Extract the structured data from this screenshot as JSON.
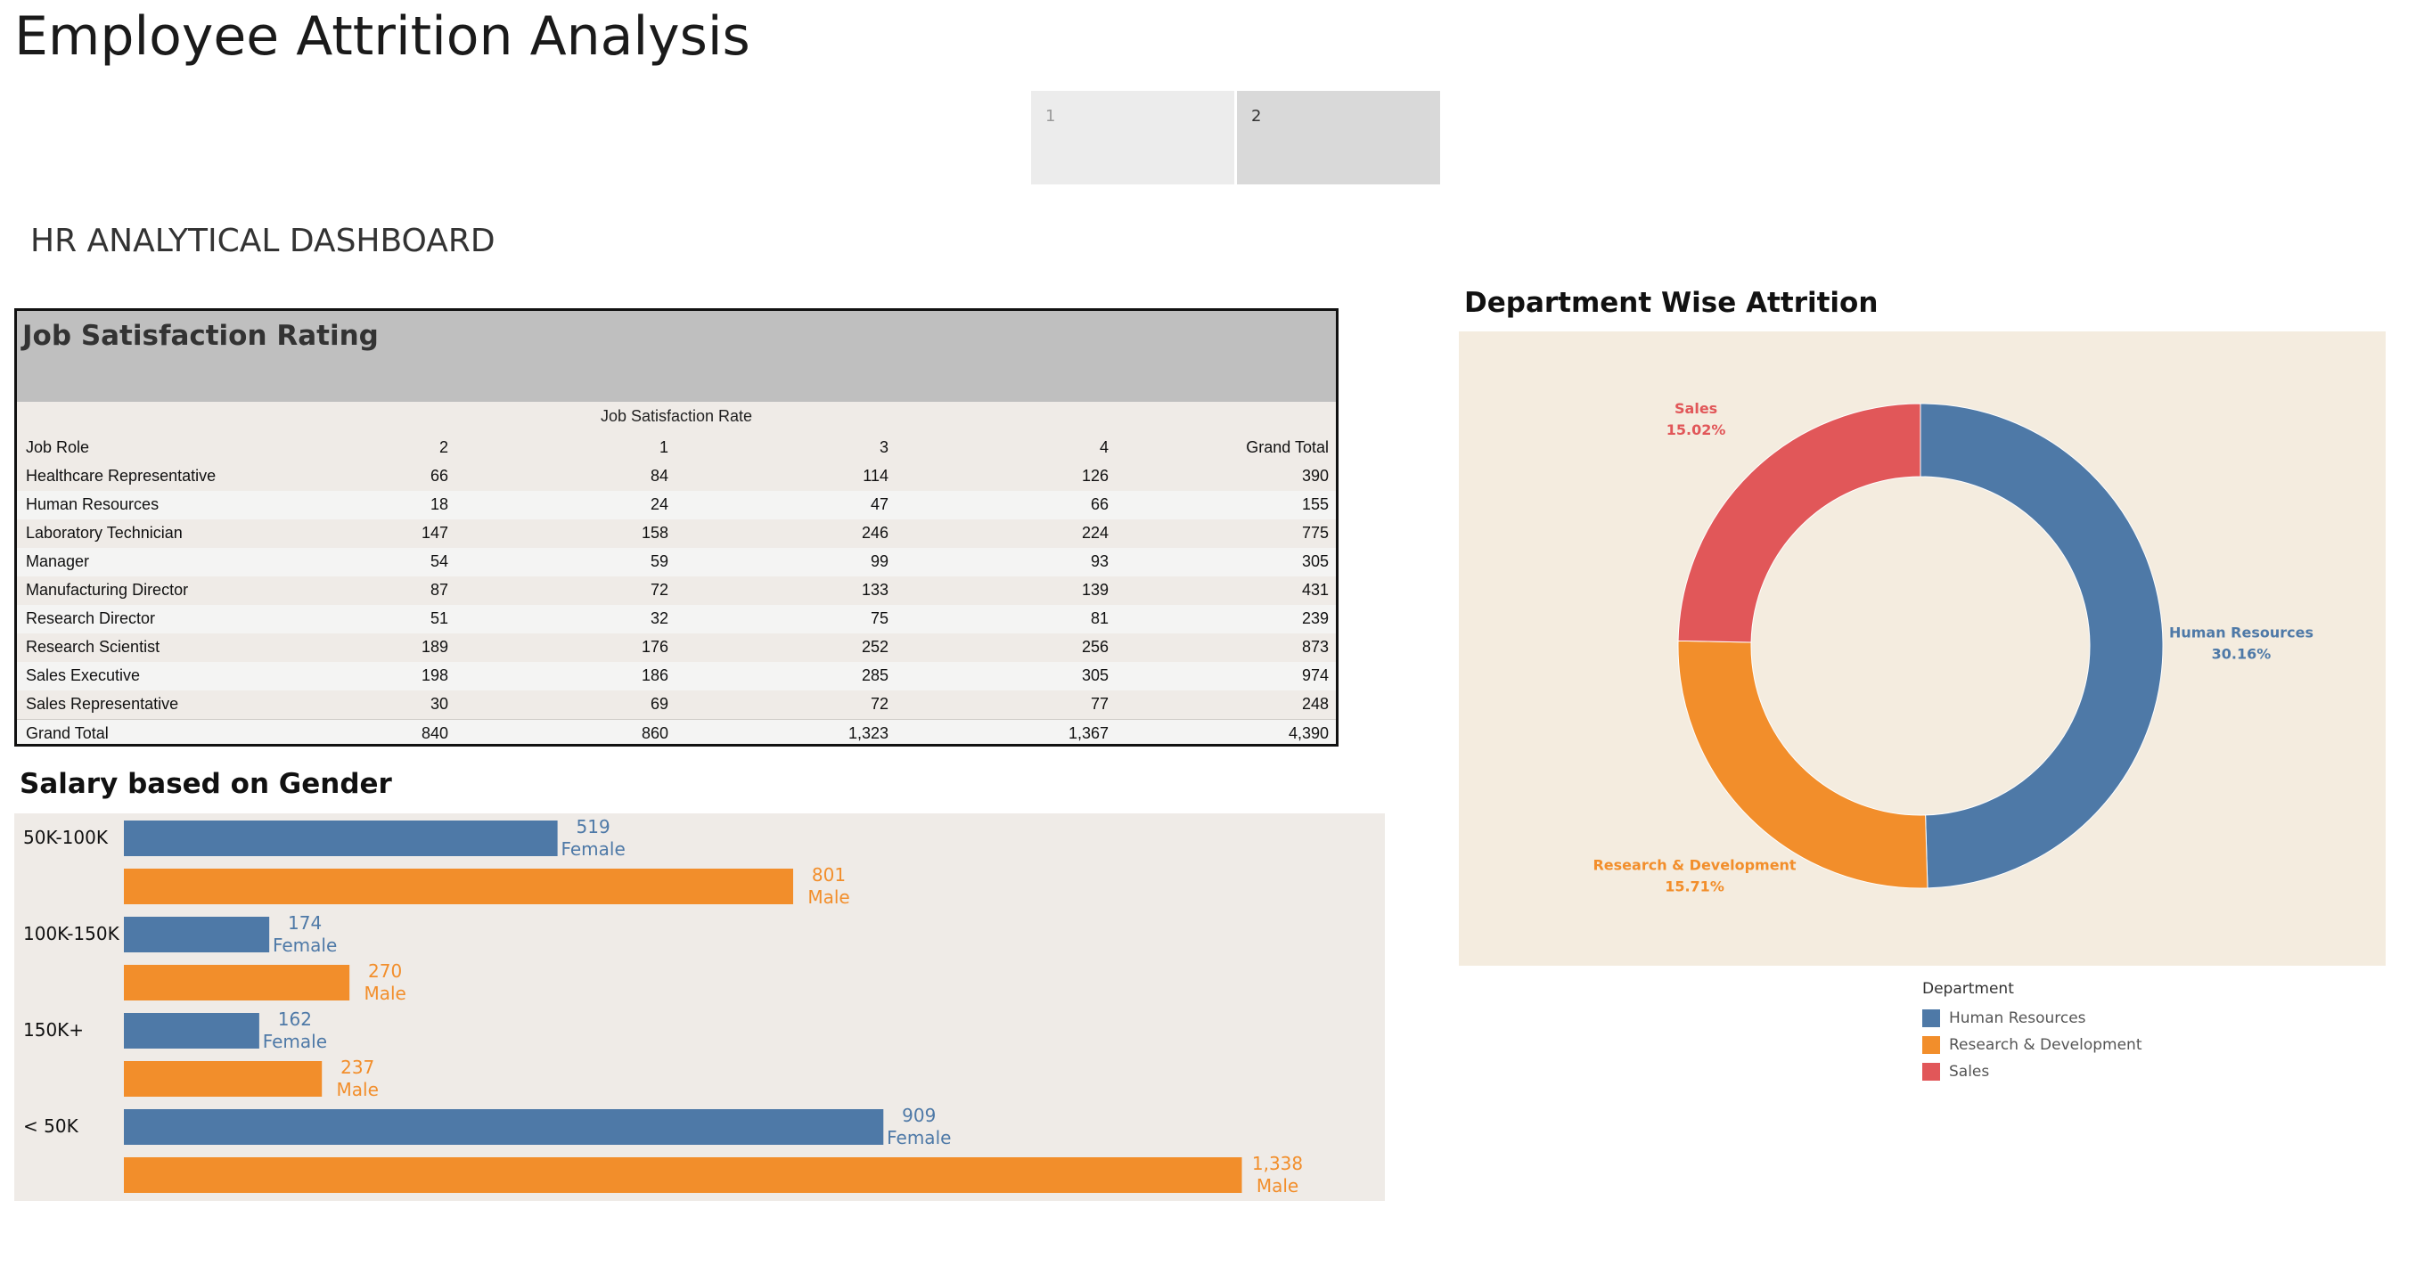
{
  "app": {
    "title": "Employee Attrition Analysis"
  },
  "tabs": [
    {
      "label": "1"
    },
    {
      "label": "2"
    }
  ],
  "dashboard_title": "HR ANALYTICAL DASHBOARD",
  "colors": {
    "blue": "#4e79a7",
    "orange": "#f28e2b",
    "red": "#e15759",
    "panel_bg": "#efebe7",
    "donut_bg": "#f4ecdf"
  },
  "job_satisfaction": {
    "title": "Job Satisfaction Rating",
    "caption": "Job Satisfaction Rate",
    "headers": [
      "Job Role",
      "2",
      "1",
      "3",
      "4",
      "Grand Total"
    ],
    "rows": [
      {
        "role": "Healthcare Representative",
        "values": [
          "66",
          "84",
          "114",
          "126",
          "390"
        ]
      },
      {
        "role": "Human Resources",
        "values": [
          "18",
          "24",
          "47",
          "66",
          "155"
        ]
      },
      {
        "role": "Laboratory Technician",
        "values": [
          "147",
          "158",
          "246",
          "224",
          "775"
        ]
      },
      {
        "role": "Manager",
        "values": [
          "54",
          "59",
          "99",
          "93",
          "305"
        ]
      },
      {
        "role": "Manufacturing Director",
        "values": [
          "87",
          "72",
          "133",
          "139",
          "431"
        ]
      },
      {
        "role": "Research Director",
        "values": [
          "51",
          "32",
          "75",
          "81",
          "239"
        ]
      },
      {
        "role": "Research Scientist",
        "values": [
          "189",
          "176",
          "252",
          "256",
          "873"
        ]
      },
      {
        "role": "Sales Executive",
        "values": [
          "198",
          "186",
          "285",
          "305",
          "974"
        ]
      },
      {
        "role": "Sales Representative",
        "values": [
          "30",
          "69",
          "72",
          "77",
          "248"
        ]
      },
      {
        "role": "Grand Total",
        "values": [
          "840",
          "860",
          "1,323",
          "1,367",
          "4,390"
        ]
      }
    ]
  },
  "salary": {
    "title": "Salary based on Gender"
  },
  "department": {
    "title": "Department Wise Attrition",
    "legend_title": "Department",
    "legend": [
      "Human Resources",
      "Research & Development",
      "Sales"
    ]
  },
  "chart_data": [
    {
      "type": "bar",
      "title": "Salary based on Gender",
      "orientation": "horizontal",
      "categories": [
        "50K-100K",
        "100K-150K",
        "150K+",
        "< 50K"
      ],
      "series": [
        {
          "name": "Female",
          "values": [
            519,
            174,
            162,
            909
          ]
        },
        {
          "name": "Male",
          "values": [
            801,
            270,
            237,
            1338
          ]
        }
      ],
      "data_labels": [
        [
          "519",
          "801"
        ],
        [
          "174",
          "270"
        ],
        [
          "162",
          "237"
        ],
        [
          "909",
          "1,338"
        ]
      ]
    },
    {
      "type": "pie",
      "title": "Department Wise Attrition",
      "donut": true,
      "slices": [
        {
          "label": "Human Resources",
          "percent_label": "30.16%",
          "value": 30.16
        },
        {
          "label": "Research & Development",
          "percent_label": "15.71%",
          "value": 15.71
        },
        {
          "label": "Sales",
          "percent_label": "15.02%",
          "value": 15.02
        }
      ],
      "legend_position": "bottom-right"
    }
  ]
}
